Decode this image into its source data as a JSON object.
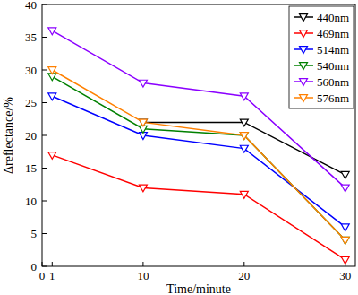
{
  "chart_data": {
    "type": "line",
    "x_label": "Time/minute",
    "y_label": "Δreflectance/%",
    "x": [
      1,
      10,
      20,
      30
    ],
    "xlim": [
      0,
      31
    ],
    "xticks": [
      0,
      1,
      10,
      20,
      30
    ],
    "ylim": [
      0,
      40
    ],
    "yticks": [
      0,
      5,
      10,
      15,
      20,
      25,
      30,
      35,
      40
    ],
    "legend": "upper right",
    "marker": "triangle-down",
    "grid": false,
    "series": [
      {
        "name": "440nm",
        "color": "#000000",
        "values": [
          null,
          22,
          22,
          14
        ]
      },
      {
        "name": "469nm",
        "color": "#ff0000",
        "values": [
          17,
          12,
          11,
          1
        ]
      },
      {
        "name": "514nm",
        "color": "#0000ff",
        "values": [
          26,
          20,
          18,
          6
        ]
      },
      {
        "name": "540nm",
        "color": "#008000",
        "values": [
          29,
          21,
          20,
          4
        ]
      },
      {
        "name": "560nm",
        "color": "#8b00ff",
        "values": [
          36,
          28,
          26,
          12
        ]
      },
      {
        "name": "576nm",
        "color": "#ff8000",
        "values": [
          30,
          22,
          20,
          4
        ]
      }
    ]
  }
}
